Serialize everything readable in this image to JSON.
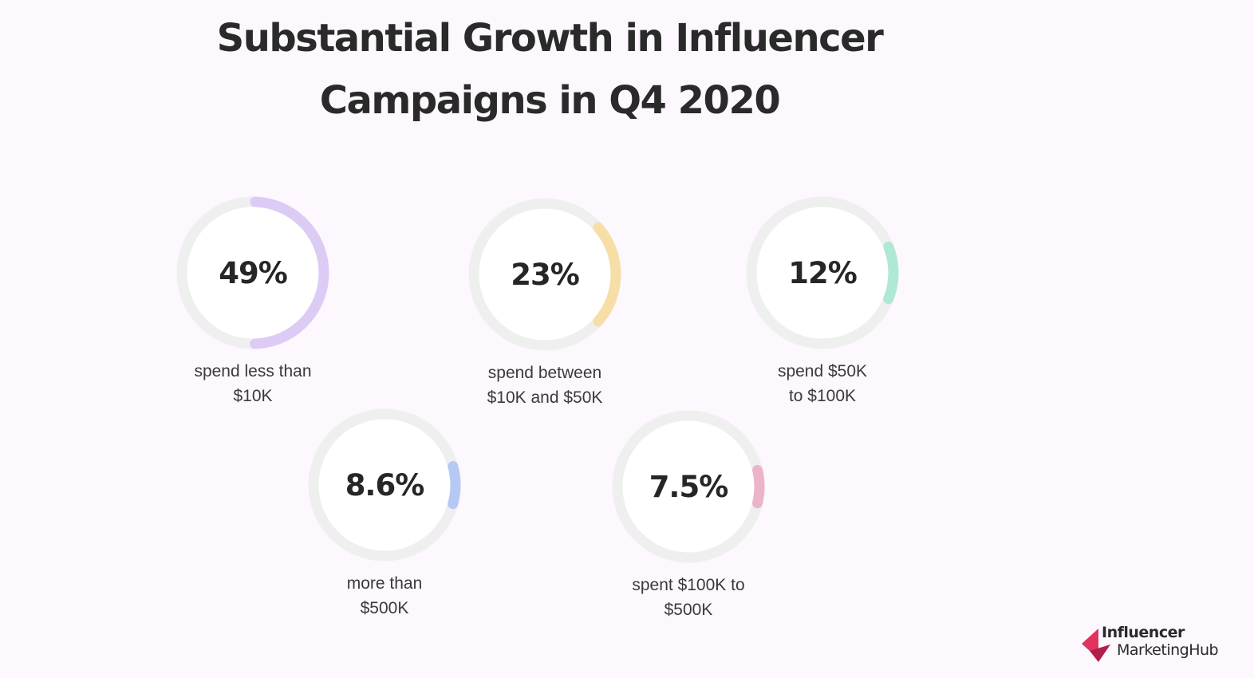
{
  "chart_data": {
    "type": "donut-stats",
    "title": [
      "Substantial Growth in Influencer",
      "Campaigns in Q4 2020"
    ],
    "items": [
      {
        "value": 49,
        "value_label": "49%",
        "label": [
          "spend less than",
          "$10K"
        ],
        "color": "#dcccf5"
      },
      {
        "value": 23,
        "value_label": "23%",
        "label": [
          "spend between",
          "$10K and $50K"
        ],
        "color": "#f6dea6"
      },
      {
        "value": 12,
        "value_label": "12%",
        "label": [
          "spend $50K",
          "to $100K"
        ],
        "color": "#b0e8d6"
      },
      {
        "value": 8.6,
        "value_label": "8.6%",
        "label": [
          "more than",
          "$500K"
        ],
        "color": "#b6c9f3"
      },
      {
        "value": 7.5,
        "value_label": "7.5%",
        "label": [
          "spent $100K to",
          "$500K"
        ],
        "color": "#ebb4c8"
      }
    ],
    "track_color": "#efefef",
    "center_color": "#ffffff"
  },
  "brand": {
    "line1": "Influencer",
    "line2": "MarketingHub",
    "colors": [
      "#e0345f",
      "#b01f4a"
    ]
  }
}
